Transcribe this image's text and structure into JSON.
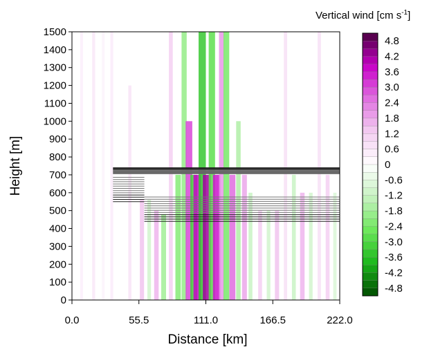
{
  "chart_data": {
    "type": "heatmap",
    "title": "",
    "xlabel": "Distance [km]",
    "ylabel": "Height [m]",
    "xlim": [
      0,
      222
    ],
    "ylim": [
      0,
      1500
    ],
    "x_ticks": [
      "0.0",
      "55.5",
      "111.0",
      "166.5",
      "222.0"
    ],
    "x_tick_values": [
      0,
      55.5,
      111,
      166.5,
      222
    ],
    "y_ticks": [
      "0",
      "100",
      "200",
      "300",
      "400",
      "500",
      "600",
      "700",
      "800",
      "900",
      "1000",
      "1100",
      "1200",
      "1300",
      "1400",
      "1500"
    ],
    "y_tick_values": [
      0,
      100,
      200,
      300,
      400,
      500,
      600,
      700,
      800,
      900,
      1000,
      1100,
      1200,
      1300,
      1400,
      1500
    ],
    "colorbar": {
      "title": "Vertical wind [cm s",
      "title_superscript": "-1",
      "title_close": "]",
      "range": [
        -5.1,
        5.1
      ],
      "labels": [
        "4.8",
        "4.2",
        "3.6",
        "3.0",
        "2.4",
        "1.8",
        "1.2",
        "0.6",
        "0",
        "-0.6",
        "-1.2",
        "-1.8",
        "-2.4",
        "-3.0",
        "-3.6",
        "-4.2",
        "-4.8"
      ],
      "label_values": [
        4.8,
        4.2,
        3.6,
        3.0,
        2.4,
        1.8,
        1.2,
        0.6,
        0,
        -0.6,
        -1.2,
        -1.8,
        -2.4,
        -3.0,
        -3.6,
        -4.2,
        -4.8
      ],
      "positive_colors": [
        "#ffffff",
        "#f3cdf1",
        "#e070e0",
        "#c800c8",
        "#4a0040"
      ],
      "negative_colors": [
        "#ffffff",
        "#c6f2c0",
        "#6ee85c",
        "#1bb81b",
        "#004a00"
      ]
    },
    "wind_bands": [
      {
        "x": 8,
        "height_range": [
          0,
          1500
        ],
        "value": 0.4
      },
      {
        "x": 18,
        "height_range": [
          0,
          1500
        ],
        "value": 0.6
      },
      {
        "x": 26,
        "height_range": [
          0,
          1500
        ],
        "value": 0.3
      },
      {
        "x": 33,
        "height_range": [
          0,
          1500
        ],
        "value": 0.5
      },
      {
        "x": 48,
        "height_range": [
          0,
          1200
        ],
        "value": 0.7
      },
      {
        "x": 58,
        "height_range": [
          0,
          560
        ],
        "value": 1.4
      },
      {
        "x": 64,
        "height_range": [
          0,
          560
        ],
        "value": -1.0
      },
      {
        "x": 70,
        "height_range": [
          0,
          500
        ],
        "value": 1.6
      },
      {
        "x": 76,
        "height_range": [
          0,
          480
        ],
        "value": -1.8
      },
      {
        "x": 82,
        "height_range": [
          0,
          1500
        ],
        "value": 1.2
      },
      {
        "x": 88,
        "height_range": [
          0,
          700
        ],
        "value": -2.2
      },
      {
        "x": 93,
        "height_range": [
          0,
          1500
        ],
        "value": -2.0
      },
      {
        "x": 97,
        "height_range": [
          0,
          1000
        ],
        "value": 3.0
      },
      {
        "x": 101,
        "height_range": [
          0,
          700
        ],
        "value": -3.2
      },
      {
        "x": 104,
        "height_range": [
          0,
          700
        ],
        "value": 3.8
      },
      {
        "x": 108,
        "height_range": [
          0,
          1500
        ],
        "value": -3.4
      },
      {
        "x": 112,
        "height_range": [
          0,
          700
        ],
        "value": 4.2
      },
      {
        "x": 116,
        "height_range": [
          0,
          1500
        ],
        "value": -2.8
      },
      {
        "x": 120,
        "height_range": [
          0,
          700
        ],
        "value": 3.6
      },
      {
        "x": 124,
        "height_range": [
          0,
          1500
        ],
        "value": 2.0
      },
      {
        "x": 128,
        "height_range": [
          0,
          1500
        ],
        "value": -2.4
      },
      {
        "x": 133,
        "height_range": [
          0,
          700
        ],
        "value": 2.6
      },
      {
        "x": 138,
        "height_range": [
          0,
          1000
        ],
        "value": -1.6
      },
      {
        "x": 143,
        "height_range": [
          0,
          700
        ],
        "value": 1.8
      },
      {
        "x": 148,
        "height_range": [
          0,
          600
        ],
        "value": -1.2
      },
      {
        "x": 156,
        "height_range": [
          0,
          500
        ],
        "value": 1.2
      },
      {
        "x": 163,
        "height_range": [
          0,
          500
        ],
        "value": -1.0
      },
      {
        "x": 170,
        "height_range": [
          0,
          500
        ],
        "value": 1.4
      },
      {
        "x": 177,
        "height_range": [
          0,
          1500
        ],
        "value": 0.8
      },
      {
        "x": 184,
        "height_range": [
          0,
          700
        ],
        "value": -1.2
      },
      {
        "x": 191,
        "height_range": [
          0,
          600
        ],
        "value": 1.6
      },
      {
        "x": 198,
        "height_range": [
          0,
          600
        ],
        "value": -1.0
      },
      {
        "x": 205,
        "height_range": [
          0,
          1500
        ],
        "value": 0.8
      },
      {
        "x": 212,
        "height_range": [
          0,
          700
        ],
        "value": 1.2
      },
      {
        "x": 218,
        "height_range": [
          0,
          600
        ],
        "value": -0.8
      }
    ],
    "inversion_layer": {
      "top_height": 740,
      "x_start": 34,
      "x_end": 222,
      "base_segments": [
        {
          "x": [
            34,
            60
          ],
          "height": 550
        },
        {
          "x": [
            60,
            98
          ],
          "height": 440
        },
        {
          "x": [
            98,
            140
          ],
          "height": 440
        },
        {
          "x": [
            140,
            222
          ],
          "height": 440
        }
      ]
    }
  }
}
